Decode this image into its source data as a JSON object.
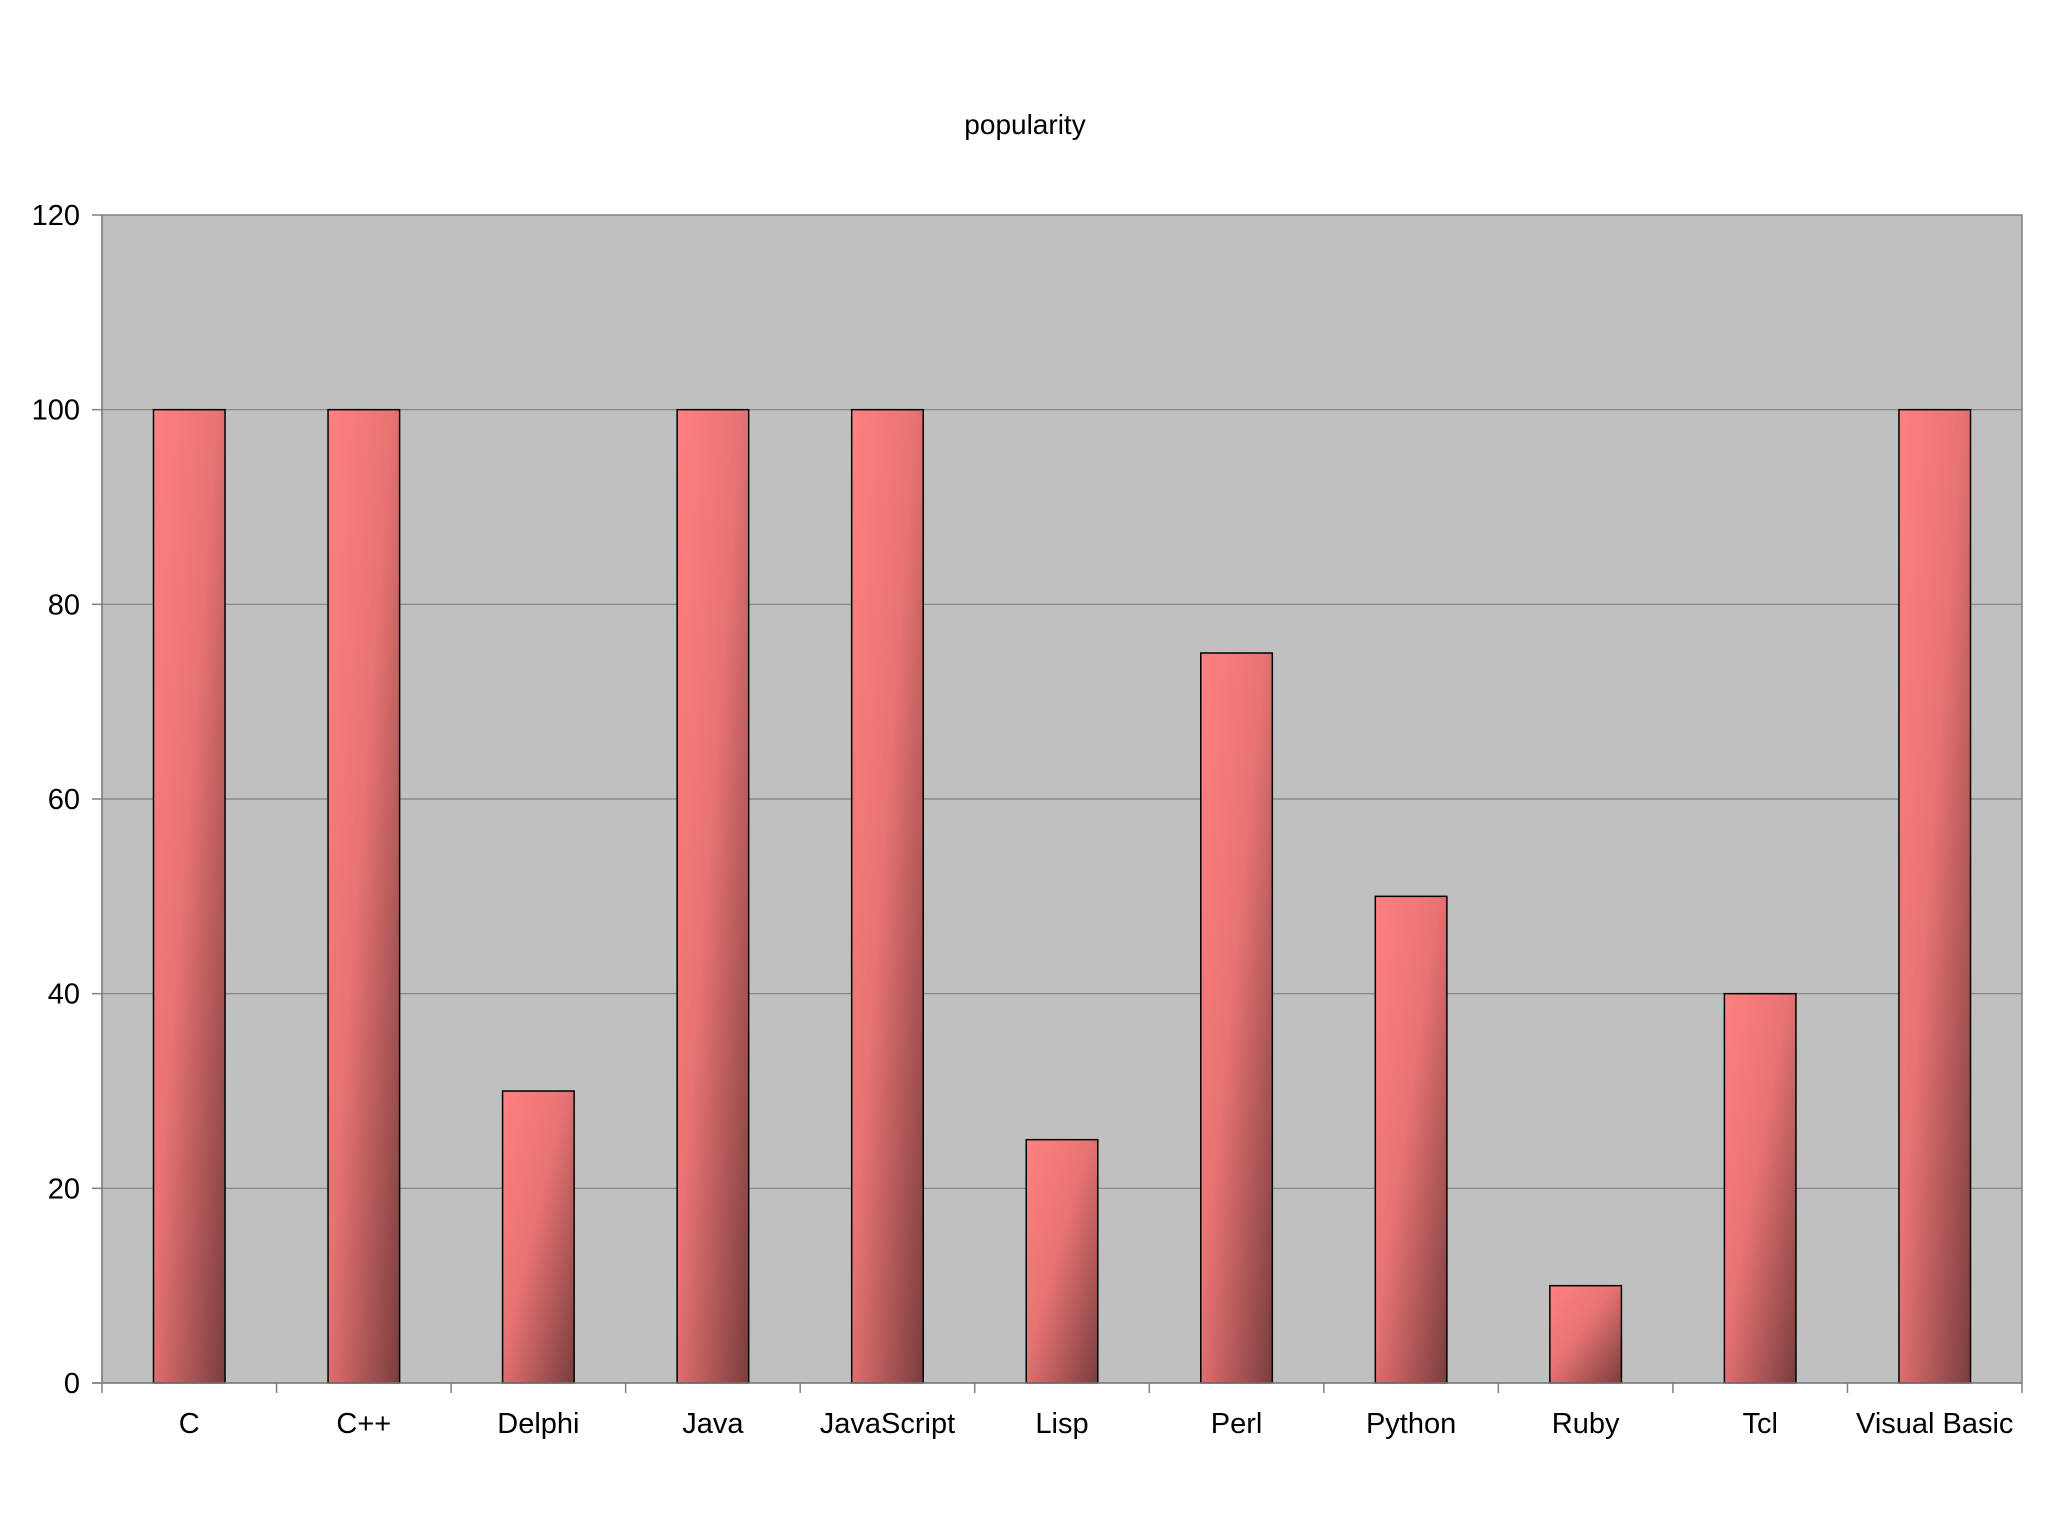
{
  "chart_data": {
    "type": "bar",
    "title": "popularity",
    "xlabel": "",
    "ylabel": "",
    "categories": [
      "C",
      "C++",
      "Delphi",
      "Java",
      "JavaScript",
      "Lisp",
      "Perl",
      "Python",
      "Ruby",
      "Tcl",
      "Visual Basic"
    ],
    "values": [
      100,
      100,
      30,
      100,
      100,
      25,
      75,
      50,
      10,
      40,
      100
    ],
    "ylim": [
      0,
      120
    ],
    "yticks": [
      0,
      20,
      40,
      60,
      80,
      100,
      120
    ],
    "grid": true,
    "legend": "none",
    "colors": {
      "plot_background": "#c0c0c0",
      "bar_light": "#ff8080",
      "bar_dark": "#7a3d3d",
      "gridline": "#808080",
      "axis": "#808080",
      "bar_border": "#000000"
    }
  }
}
